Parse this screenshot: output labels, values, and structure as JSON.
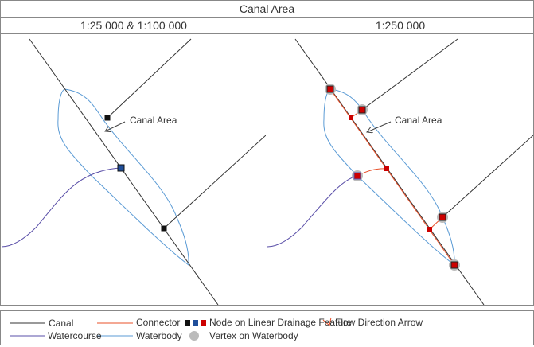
{
  "title": "Canal Area",
  "panels": [
    {
      "label": "1:25 000 & 1:100 000",
      "annotation": "Canal Area"
    },
    {
      "label": "1:250 000",
      "annotation": "Canal Area"
    }
  ],
  "legend": {
    "canal": "Canal",
    "watercourse": "Watercourse",
    "connector": "Connector",
    "waterbody": "Waterbody",
    "node": "Node on Linear Drainage Feature",
    "vertex": "Vertex on Waterbody",
    "flow_arrow": "Flow Direction Arrow"
  },
  "colors": {
    "canal": "#333333",
    "watercourse": "#5a4fa8",
    "connector": "#e8502a",
    "waterbody": "#5b9bd5",
    "node_black": "#111111",
    "node_blue": "#1f4e9a",
    "node_red": "#cc0000",
    "vertex": "#bbbbbb"
  }
}
